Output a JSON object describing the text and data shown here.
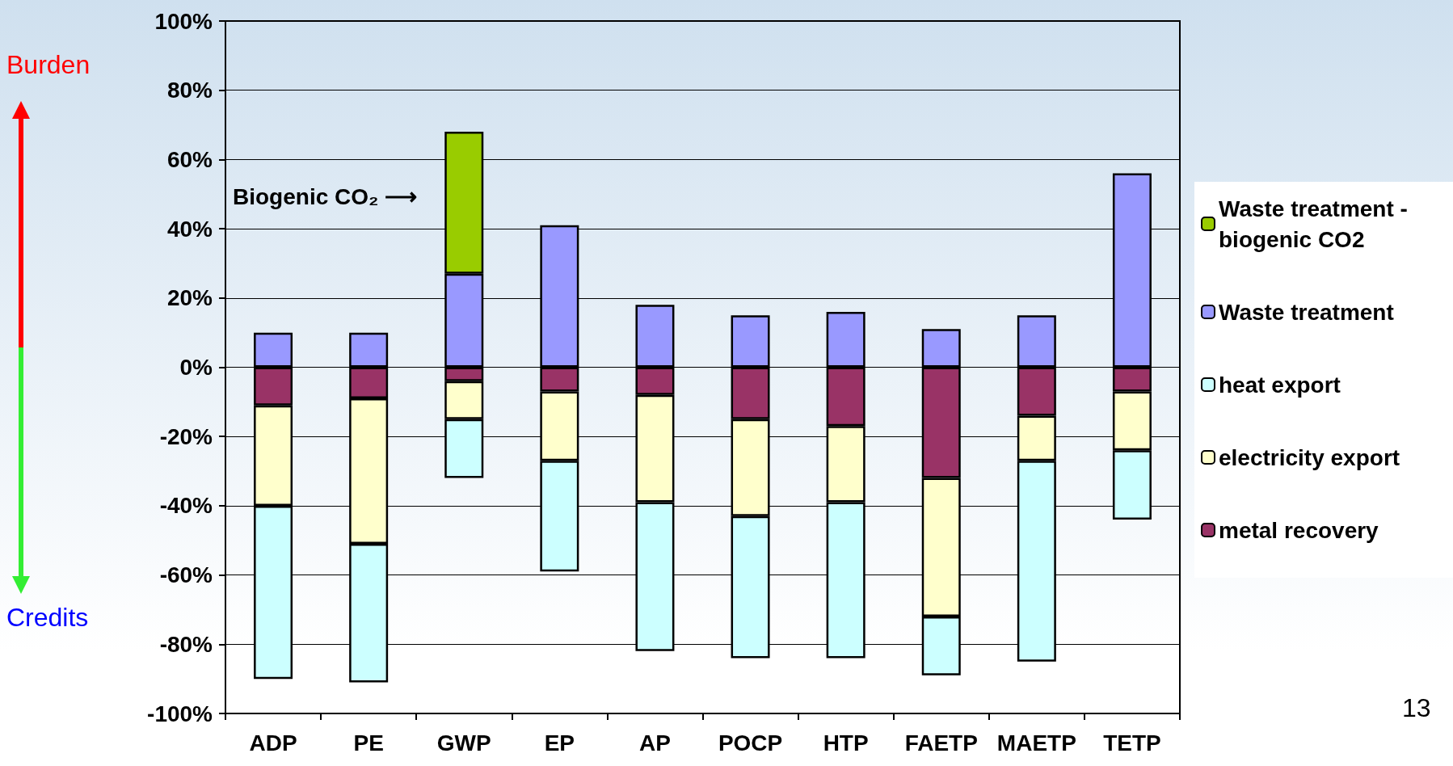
{
  "chart_data": {
    "type": "bar",
    "stacked": true,
    "categories": [
      "ADP",
      "PE",
      "GWP",
      "EP",
      "AP",
      "POCP",
      "HTP",
      "FAETP",
      "MAETP",
      "TETP"
    ],
    "series": [
      {
        "name": "metal recovery",
        "color": "#993366",
        "values": [
          -11,
          -9,
          -4,
          -7,
          -8,
          -15,
          -17,
          -32,
          -14,
          -7
        ]
      },
      {
        "name": "electricity export",
        "color": "#ffffcc",
        "values": [
          -29,
          -42,
          -11,
          -20,
          -31,
          -28,
          -22,
          -40,
          -13,
          -17
        ]
      },
      {
        "name": "heat export",
        "color": "#ccffff",
        "values": [
          -50,
          -40,
          -17,
          -32,
          -43,
          -41,
          -45,
          -17,
          -58,
          -20
        ]
      },
      {
        "name": "Waste treatment",
        "color": "#9999ff",
        "values": [
          10,
          10,
          27,
          41,
          18,
          15,
          16,
          11,
          15,
          56
        ]
      },
      {
        "name": "Waste treatment - biogenic CO2",
        "color": "#99cc00",
        "values": [
          null,
          null,
          41,
          null,
          null,
          null,
          null,
          null,
          null,
          null
        ]
      }
    ],
    "ylim": [
      -100,
      100
    ],
    "yticks": [
      {
        "value": -100,
        "label": "-100%"
      },
      {
        "value": -80,
        "label": "-80%"
      },
      {
        "value": -60,
        "label": "-60%"
      },
      {
        "value": -40,
        "label": "-40%"
      },
      {
        "value": -20,
        "label": "-20%"
      },
      {
        "value": 0,
        "label": "0%"
      },
      {
        "value": 20,
        "label": "20%"
      },
      {
        "value": 40,
        "label": "40%"
      },
      {
        "value": 60,
        "label": "60%"
      },
      {
        "value": 80,
        "label": "80%"
      },
      {
        "value": 100,
        "label": "100%"
      }
    ],
    "grid": "y",
    "legend": "right",
    "annotations": [
      "Burden",
      "Credits",
      "Biogenic CO₂ ⟶",
      "13"
    ]
  }
}
